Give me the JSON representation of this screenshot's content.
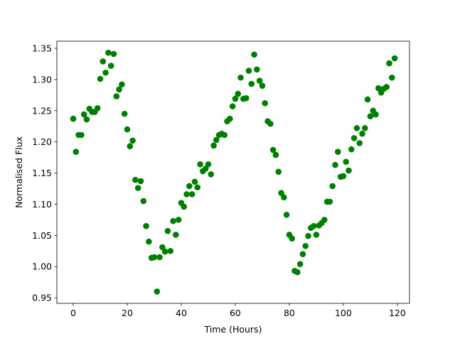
{
  "chart_data": {
    "type": "scatter",
    "xlabel": "Time (Hours)",
    "ylabel": "Normalised Flux",
    "color": "#008000",
    "x": [
      0,
      1,
      2,
      3,
      4,
      5,
      6,
      7,
      8,
      9,
      10,
      11,
      12,
      13,
      14,
      15,
      16,
      17,
      18,
      19,
      20,
      21,
      22,
      23,
      24,
      25,
      26,
      27,
      28,
      29,
      30,
      31,
      32,
      33,
      34,
      35,
      36,
      37,
      38,
      39,
      40,
      41,
      42,
      43,
      44,
      45,
      46,
      47,
      48,
      49,
      50,
      51,
      52,
      53,
      54,
      55,
      56,
      57,
      58,
      59,
      60,
      61,
      62,
      63,
      64,
      65,
      66,
      67,
      68,
      69,
      70,
      71,
      72,
      73,
      74,
      75,
      76,
      77,
      78,
      79,
      80,
      81,
      82,
      83,
      84,
      85,
      86,
      87,
      88,
      89,
      90,
      91,
      92,
      93,
      94,
      95,
      96,
      97,
      98,
      99,
      100,
      101,
      102,
      103,
      104,
      105,
      106,
      107,
      108,
      109,
      110,
      111,
      112,
      113,
      114,
      115,
      116,
      117,
      118,
      119
    ],
    "values": [
      1.237,
      1.184,
      1.211,
      1.211,
      1.244,
      1.236,
      1.253,
      1.248,
      1.248,
      1.254,
      1.301,
      1.329,
      1.311,
      1.343,
      1.322,
      1.341,
      1.273,
      1.284,
      1.292,
      1.245,
      1.22,
      1.193,
      1.202,
      1.139,
      1.126,
      1.137,
      1.105,
      1.065,
      1.04,
      1.014,
      1.015,
      0.96,
      1.015,
      1.031,
      1.024,
      1.057,
      1.025,
      1.073,
      1.051,
      1.075,
      1.102,
      1.096,
      1.116,
      1.129,
      1.116,
      1.136,
      1.127,
      1.164,
      1.153,
      1.157,
      1.164,
      1.148,
      1.194,
      1.203,
      1.211,
      1.213,
      1.211,
      1.233,
      1.237,
      1.257,
      1.269,
      1.277,
      1.303,
      1.269,
      1.27,
      1.314,
      1.293,
      1.34,
      1.316,
      1.298,
      1.29,
      1.262,
      1.233,
      1.229,
      1.187,
      1.179,
      1.152,
      1.118,
      1.111,
      1.083,
      1.051,
      1.045,
      0.993,
      0.991,
      1.004,
      1.02,
      1.033,
      1.049,
      1.062,
      1.065,
      1.051,
      1.066,
      1.07,
      1.075,
      1.104,
      1.104,
      1.129,
      1.163,
      1.184,
      1.144,
      1.145,
      1.168,
      1.154,
      1.188,
      1.206,
      1.222,
      1.198,
      1.213,
      1.222,
      1.268,
      1.241,
      1.25,
      1.244,
      1.286,
      1.279,
      1.285,
      1.288,
      1.326,
      1.303,
      1.334
    ],
    "xlim": [
      -6.05,
      124.5
    ],
    "xticks": [
      0,
      20,
      40,
      60,
      80,
      100,
      120
    ],
    "ylim": [
      0.941,
      1.3614
    ],
    "yticks": [
      0.95,
      {
        "value": 1.0,
        "label": "1.00"
      },
      1.05,
      {
        "value": 1.1,
        "label": "1.10"
      },
      1.15,
      {
        "value": 1.2,
        "label": "1.20"
      },
      1.25,
      {
        "value": 1.3,
        "label": "1.30"
      },
      1.35
    ]
  }
}
